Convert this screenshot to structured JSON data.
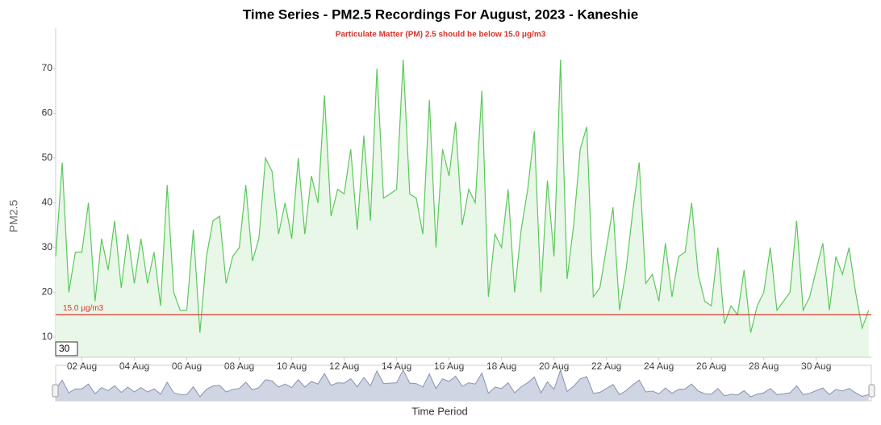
{
  "chart_data": {
    "type": "line",
    "title": "Time Series - PM2.5 Recordings For August, 2023 - Kaneshie",
    "subtitle": "Particulate Matter (PM) 2.5 should be below 15.0 μg/m3",
    "y_label": "PM2.5",
    "x_label": "Time Period",
    "range_box": "30",
    "threshold": {
      "value": 15,
      "label": "15.0 μg/m3",
      "color": "#d9342b"
    },
    "color": "#5cc85c",
    "fill": "#e8f7e8",
    "xlim": [
      1,
      32.1
    ],
    "ylim": [
      5.5,
      79
    ],
    "yticks": [
      10,
      20,
      30,
      40,
      50,
      60,
      70
    ],
    "xticks": [
      {
        "value": 2,
        "label": "02 Aug"
      },
      {
        "value": 4,
        "label": "04 Aug"
      },
      {
        "value": 6,
        "label": "06 Aug"
      },
      {
        "value": 8,
        "label": "08 Aug"
      },
      {
        "value": 10,
        "label": "10 Aug"
      },
      {
        "value": 12,
        "label": "12 Aug"
      },
      {
        "value": 14,
        "label": "14 Aug"
      },
      {
        "value": 16,
        "label": "16 Aug"
      },
      {
        "value": 18,
        "label": "18 Aug"
      },
      {
        "value": 20,
        "label": "20 Aug"
      },
      {
        "value": 22,
        "label": "22 Aug"
      },
      {
        "value": 24,
        "label": "24 Aug"
      },
      {
        "value": 26,
        "label": "26 Aug"
      },
      {
        "value": 28,
        "label": "28 Aug"
      },
      {
        "value": 30,
        "label": "30 Aug"
      }
    ],
    "x": [
      1,
      1.25,
      1.5,
      1.75,
      2,
      2.25,
      2.5,
      2.75,
      3,
      3.25,
      3.5,
      3.75,
      4,
      4.25,
      4.5,
      4.75,
      5,
      5.25,
      5.5,
      5.75,
      6,
      6.25,
      6.5,
      6.75,
      7,
      7.25,
      7.5,
      7.75,
      8,
      8.25,
      8.5,
      8.75,
      9,
      9.25,
      9.5,
      9.75,
      10,
      10.25,
      10.5,
      10.75,
      11,
      11.25,
      11.5,
      11.75,
      12,
      12.25,
      12.5,
      12.75,
      13,
      13.25,
      13.5,
      13.75,
      14,
      14.25,
      14.5,
      14.75,
      15,
      15.25,
      15.5,
      15.75,
      16,
      16.25,
      16.5,
      16.75,
      17,
      17.25,
      17.5,
      17.75,
      18,
      18.25,
      18.5,
      18.75,
      19,
      19.25,
      19.5,
      19.75,
      20,
      20.25,
      20.5,
      20.75,
      21,
      21.25,
      21.5,
      21.75,
      22,
      22.25,
      22.5,
      22.75,
      23,
      23.25,
      23.5,
      23.75,
      24,
      24.25,
      24.5,
      24.75,
      25,
      25.25,
      25.5,
      25.75,
      26,
      26.25,
      26.5,
      26.75,
      27,
      27.25,
      27.5,
      27.75,
      28,
      28.25,
      28.5,
      28.75,
      29,
      29.25,
      29.5,
      29.75,
      30,
      30.25,
      30.5,
      30.75,
      31,
      31.25,
      31.5,
      31.75,
      32
    ],
    "values": [
      28,
      49,
      20,
      29,
      29,
      40,
      18,
      32,
      25,
      36,
      21,
      33,
      22,
      32,
      22,
      29,
      17,
      44,
      20,
      16,
      16,
      34,
      11,
      28,
      36,
      37,
      22,
      28,
      30,
      44,
      27,
      32,
      50,
      47,
      33,
      40,
      32,
      50,
      33,
      46,
      40,
      64,
      37,
      43,
      42,
      52,
      34,
      55,
      36,
      70,
      41,
      42,
      43,
      72,
      42,
      41,
      33,
      63,
      30,
      52,
      46,
      58,
      35,
      43,
      40,
      65,
      19,
      33,
      30,
      43,
      20,
      34,
      43,
      56,
      20,
      45,
      28,
      72,
      23,
      35,
      52,
      57,
      19,
      21,
      30,
      39,
      16,
      25,
      38,
      49,
      22,
      24,
      18,
      31,
      19,
      28,
      29,
      40,
      24,
      18,
      17,
      30,
      13,
      17,
      15,
      25,
      11,
      17,
      20,
      30,
      16,
      18,
      20,
      36,
      16,
      19,
      25,
      31,
      16,
      28,
      24,
      30,
      20,
      12,
      16
    ]
  }
}
